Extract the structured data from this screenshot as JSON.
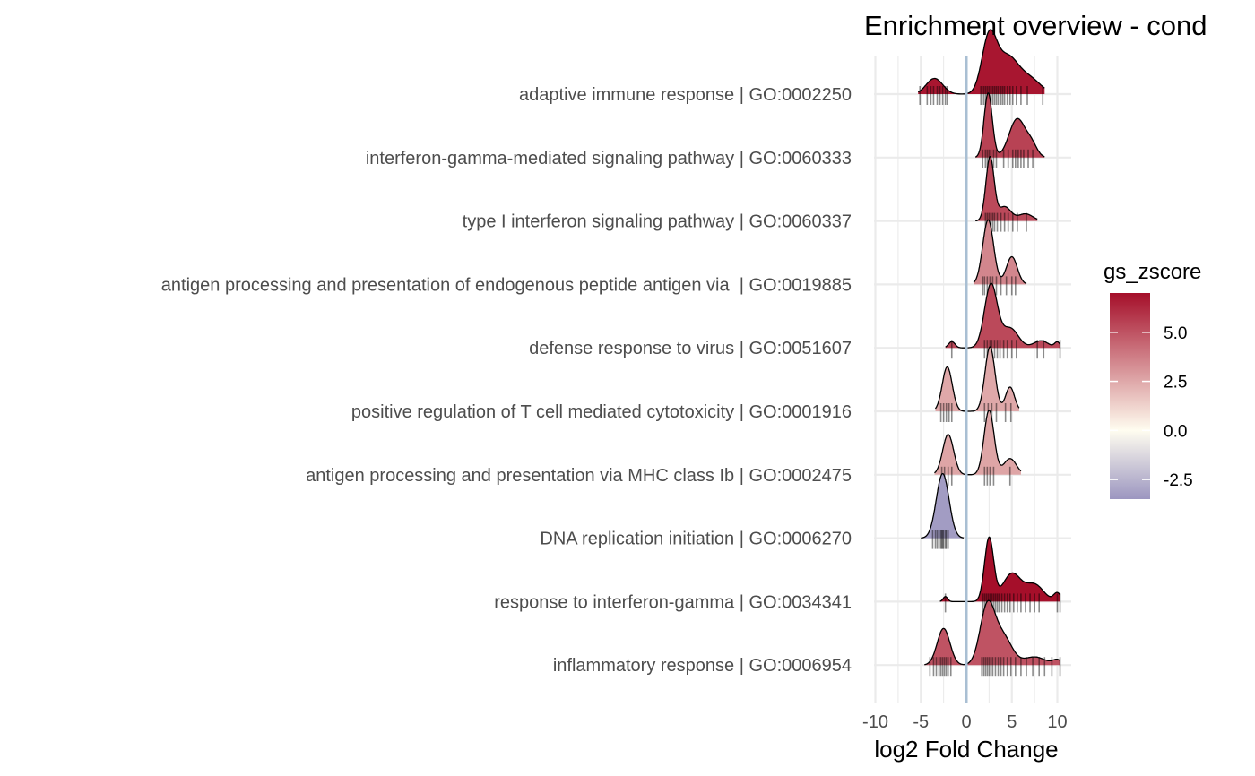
{
  "chart_data": {
    "type": "ridgeline",
    "title": "Enrichment overview - cond",
    "xlabel": "log2 Fold Change",
    "ylabel": "",
    "xlim": [
      -10,
      10
    ],
    "x_ticks": [
      -10,
      -5,
      0,
      5,
      10
    ],
    "x_tick_labels": [
      "-10",
      "-5",
      "0",
      "5",
      "10"
    ],
    "reference_line_x": 0,
    "grid": true,
    "legend": {
      "title": "gs_zscore",
      "placement": "right",
      "tick_values": [
        5.0,
        2.5,
        0.0,
        -2.5
      ],
      "tick_labels": [
        "5.0",
        "2.5",
        "0.0",
        "-2.5"
      ],
      "range": [
        -3.5,
        7.0
      ],
      "colors": {
        "low": "#9c96c0",
        "mid": "#fffdf0",
        "high": "#a50f2a"
      }
    },
    "categories": [
      "adaptive immune response | GO:0002250",
      "interferon-gamma-mediated signaling pathway | GO:0060333",
      "type I interferon signaling pathway | GO:0060337",
      "antigen processing and presentation of endogenous peptide antigen via  | GO:0019885",
      "defense response to virus | GO:0051607",
      "positive regulation of T cell mediated cytotoxicity | GO:0001916",
      "antigen processing and presentation via MHC class Ib | GO:0002475",
      "DNA replication initiation | GO:0006270",
      "response to interferon-gamma | GO:0034341",
      "inflammatory response | GO:0006954"
    ],
    "series": [
      {
        "zscore": 6.8,
        "components": [
          [
            -3.5,
            0.9,
            0.13
          ],
          [
            2.5,
            0.8,
            0.45
          ],
          [
            4.5,
            1.2,
            0.3
          ],
          [
            7.0,
            1.2,
            0.12
          ]
        ],
        "range": [
          -5.3,
          8.6
        ],
        "genes": [
          -5.1,
          -4.3,
          -3.9,
          -3.6,
          -3.2,
          -2.9,
          -2.6,
          -2.3,
          -2.1,
          1.6,
          1.9,
          2.1,
          2.3,
          2.5,
          2.7,
          2.9,
          3.1,
          3.3,
          3.5,
          3.8,
          4.0,
          4.2,
          4.5,
          4.8,
          5.1,
          5.5,
          6.0,
          6.7,
          8.4
        ]
      },
      {
        "zscore": 5.5,
        "components": [
          [
            2.4,
            0.45,
            0.7
          ],
          [
            5.6,
            0.9,
            0.42
          ],
          [
            7.2,
            0.6,
            0.12
          ]
        ],
        "range": [
          1.0,
          8.6
        ],
        "genes": [
          1.8,
          2.1,
          2.3,
          2.5,
          2.7,
          3.0,
          3.3,
          4.1,
          4.6,
          5.1,
          5.4,
          5.7,
          6.0,
          6.3,
          6.8,
          7.3
        ]
      },
      {
        "zscore": 5.3,
        "components": [
          [
            2.6,
            0.45,
            0.8
          ],
          [
            4.2,
            0.7,
            0.18
          ],
          [
            6.5,
            0.8,
            0.09
          ]
        ],
        "range": [
          1.0,
          7.8
        ],
        "genes": [
          2.1,
          2.3,
          2.5,
          2.7,
          2.9,
          3.1,
          3.4,
          3.8,
          4.2,
          4.6,
          5.1,
          5.6,
          6.6
        ]
      },
      {
        "zscore": 3.5,
        "components": [
          [
            2.4,
            0.6,
            0.7
          ],
          [
            5.0,
            0.6,
            0.3
          ]
        ],
        "range": [
          0.8,
          6.6
        ],
        "genes": [
          1.8,
          2.0,
          2.3,
          2.6,
          2.9,
          3.3,
          3.8,
          4.4,
          5.0,
          5.4
        ]
      },
      {
        "zscore": 5.3,
        "components": [
          [
            -1.6,
            0.35,
            0.08
          ],
          [
            2.7,
            0.7,
            0.8
          ],
          [
            4.8,
            0.9,
            0.25
          ],
          [
            8.2,
            0.8,
            0.09
          ],
          [
            10.0,
            0.3,
            0.07
          ]
        ],
        "range": [
          -2.3,
          10.3
        ],
        "genes": [
          -1.6,
          2.0,
          2.3,
          2.6,
          2.8,
          3.1,
          3.4,
          3.7,
          4.1,
          4.5,
          5.0,
          5.5,
          7.8,
          8.5,
          10.3
        ]
      },
      {
        "zscore": 2.5,
        "components": [
          [
            -2.1,
            0.55,
            0.55
          ],
          [
            2.6,
            0.55,
            0.8
          ],
          [
            4.8,
            0.5,
            0.3
          ]
        ],
        "range": [
          -3.4,
          5.8
        ],
        "genes": [
          -2.8,
          -2.5,
          -2.2,
          -1.9,
          -1.6,
          2.0,
          2.4,
          2.8,
          3.3,
          4.3,
          4.9
        ]
      },
      {
        "zscore": 2.6,
        "components": [
          [
            -2.0,
            0.6,
            0.5
          ],
          [
            2.5,
            0.55,
            0.8
          ],
          [
            4.8,
            0.7,
            0.2
          ]
        ],
        "range": [
          -3.5,
          6.0
        ],
        "genes": [
          -2.7,
          -2.4,
          -2.0,
          -1.6,
          2.0,
          2.3,
          2.6,
          3.0,
          4.8
        ]
      },
      {
        "zscore": -3.3,
        "components": [
          [
            -2.6,
            0.7,
            1.0
          ]
        ],
        "range": [
          -5.0,
          -0.3
        ],
        "genes": [
          -3.7,
          -3.4,
          -3.2,
          -3.0,
          -2.8,
          -2.7,
          -2.6,
          -2.5,
          -2.3,
          -2.2,
          -2.0
        ]
      },
      {
        "zscore": 7.0,
        "components": [
          [
            -2.3,
            0.25,
            0.06
          ],
          [
            2.5,
            0.5,
            0.75
          ],
          [
            5.0,
            1.0,
            0.33
          ],
          [
            7.5,
            1.0,
            0.2
          ],
          [
            10.0,
            0.4,
            0.1
          ]
        ],
        "range": [
          -2.9,
          10.3
        ],
        "genes": [
          -2.3,
          1.8,
          2.0,
          2.2,
          2.4,
          2.6,
          2.8,
          3.0,
          3.2,
          3.4,
          3.6,
          3.9,
          4.2,
          4.5,
          4.8,
          5.2,
          5.6,
          6.0,
          6.5,
          7.0,
          7.5,
          8.0,
          10.0,
          10.3
        ]
      },
      {
        "zscore": 5.0,
        "components": [
          [
            -2.5,
            0.7,
            0.45
          ],
          [
            2.3,
            0.8,
            0.7
          ],
          [
            4.0,
            1.0,
            0.35
          ],
          [
            7.5,
            1.2,
            0.1
          ],
          [
            10.0,
            0.5,
            0.06
          ]
        ],
        "range": [
          -4.6,
          10.3
        ],
        "genes": [
          -4.0,
          -3.6,
          -3.3,
          -3.0,
          -2.8,
          -2.6,
          -2.4,
          -2.2,
          -2.0,
          -1.7,
          1.7,
          1.9,
          2.1,
          2.3,
          2.5,
          2.7,
          2.9,
          3.2,
          3.5,
          3.8,
          4.1,
          4.5,
          4.9,
          5.4,
          6.0,
          6.6,
          7.3,
          8.0,
          8.6,
          9.4,
          10.3
        ]
      }
    ]
  }
}
